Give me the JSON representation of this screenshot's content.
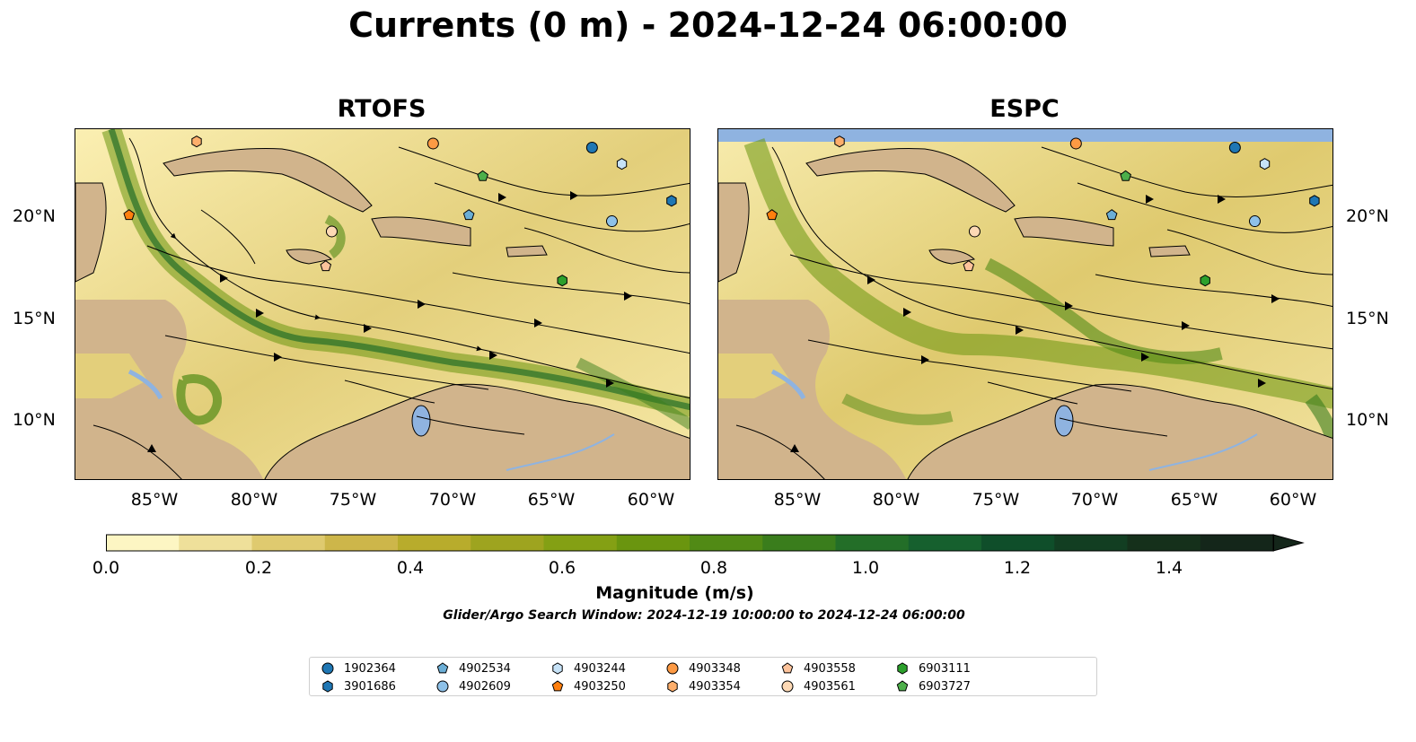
{
  "title": "Currents (0 m) - 2024-12-24 06:00:00",
  "panels": [
    {
      "id": "rtofs",
      "title": "RTOFS"
    },
    {
      "id": "espc",
      "title": "ESPC"
    }
  ],
  "axes": {
    "lon_ticks": [
      "85°W",
      "80°W",
      "75°W",
      "70°W",
      "65°W",
      "60°W"
    ],
    "lat_ticks": [
      "20°N",
      "15°N",
      "10°N"
    ],
    "lon_range": [
      -89,
      -58
    ],
    "lat_range": [
      7,
      24.2
    ]
  },
  "colorbar": {
    "label": "Magnitude (m/s)",
    "tick_labels": [
      "0.0",
      "0.2",
      "0.4",
      "0.6",
      "0.8",
      "1.0",
      "1.2",
      "1.4"
    ],
    "range": [
      0,
      1.5
    ],
    "extend": "max",
    "colors": [
      "#fdf6c3",
      "#efe09a",
      "#dfca6f",
      "#cdb64a",
      "#b8ac2c",
      "#9ea41f",
      "#84a014",
      "#6a950f",
      "#518a15",
      "#3a7d1c",
      "#236e28",
      "#16602e",
      "#0f4e2a",
      "#123e22",
      "#15301b",
      "#14261a"
    ]
  },
  "search_window": "Glider/Argo Search Window: 2024-12-19 10:00:00 to 2024-12-24 06:00:00",
  "land_color": "#d1b48c",
  "water_color": "#8fb3e0",
  "legend": [
    {
      "id": "1902364",
      "marker": "circle",
      "color": "#1f77b4"
    },
    {
      "id": "3901686",
      "marker": "hexagon",
      "color": "#1f77b4"
    },
    {
      "id": "4902534",
      "marker": "pentagon",
      "color": "#6baed6"
    },
    {
      "id": "4902609",
      "marker": "circle",
      "color": "#8ec1e8"
    },
    {
      "id": "4903244",
      "marker": "hexagon",
      "color": "#c6e2f7"
    },
    {
      "id": "4903250",
      "marker": "pentagon",
      "color": "#ff7f0e"
    },
    {
      "id": "4903348",
      "marker": "circle",
      "color": "#fd9a44"
    },
    {
      "id": "4903354",
      "marker": "hexagon",
      "color": "#fdae6b"
    },
    {
      "id": "4903558",
      "marker": "pentagon",
      "color": "#fdc39b"
    },
    {
      "id": "4903561",
      "marker": "circle",
      "color": "#fdd9b5"
    },
    {
      "id": "6903111",
      "marker": "hexagon",
      "color": "#2ca02c"
    },
    {
      "id": "6903727",
      "marker": "pentagon",
      "color": "#4daf4a"
    }
  ],
  "floats": [
    {
      "id": "4903354",
      "lon": -82.9,
      "lat": 23.6
    },
    {
      "id": "4903348",
      "lon": -71.0,
      "lat": 23.5
    },
    {
      "id": "1902364",
      "lon": -63.0,
      "lat": 23.3
    },
    {
      "id": "4903244",
      "lon": -61.5,
      "lat": 22.5
    },
    {
      "id": "6903727",
      "lon": -68.5,
      "lat": 21.9
    },
    {
      "id": "3901686",
      "lon": -59.0,
      "lat": 20.7
    },
    {
      "id": "4903250",
      "lon": -86.3,
      "lat": 20.0
    },
    {
      "id": "4902534",
      "lon": -69.2,
      "lat": 20.0
    },
    {
      "id": "4902609",
      "lon": -62.0,
      "lat": 19.7
    },
    {
      "id": "4903561",
      "lon": -76.1,
      "lat": 19.2
    },
    {
      "id": "4903558",
      "lon": -76.4,
      "lat": 17.5
    },
    {
      "id": "6903111",
      "lon": -64.5,
      "lat": 16.8
    }
  ]
}
